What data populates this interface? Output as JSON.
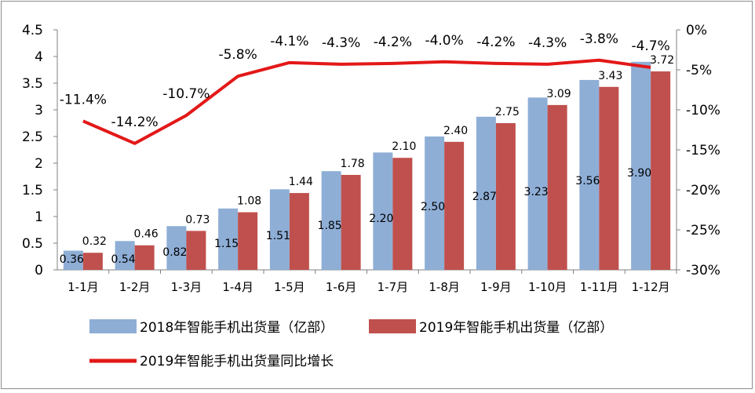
{
  "chart_data": {
    "type": "bar",
    "title": "",
    "categories": [
      "1-1月",
      "1-2月",
      "1-3月",
      "1-4月",
      "1-5月",
      "1-6月",
      "1-7月",
      "1-8月",
      "1-9月",
      "1-10月",
      "1-11月",
      "1-12月"
    ],
    "series": [
      {
        "name": "2018年智能手机出货量（亿部）",
        "type": "bar",
        "axis": "left",
        "color": "#8eaed6",
        "values": [
          0.36,
          0.54,
          0.82,
          1.15,
          1.51,
          1.85,
          2.2,
          2.5,
          2.87,
          3.23,
          3.56,
          3.9
        ],
        "labels": [
          "0.36",
          "0.54",
          "0.82",
          "1.15",
          "1.51",
          "1.85",
          "2.20",
          "2.50",
          "2.87",
          "3.23",
          "3.56",
          "3.90"
        ]
      },
      {
        "name": "2019年智能手机出货量（亿部）",
        "type": "bar",
        "axis": "left",
        "color": "#c0504d",
        "values": [
          0.32,
          0.46,
          0.73,
          1.08,
          1.44,
          1.78,
          2.1,
          2.4,
          2.75,
          3.09,
          3.43,
          3.72
        ],
        "labels": [
          "0.32",
          "0.46",
          "0.73",
          "1.08",
          "1.44",
          "1.78",
          "2.10",
          "2.40",
          "2.75",
          "3.09",
          "3.43",
          "3.72"
        ]
      },
      {
        "name": "2019年智能手机出货量同比增长",
        "type": "line",
        "axis": "right",
        "color": "#e31818",
        "values": [
          -11.4,
          -14.2,
          -10.7,
          -5.8,
          -4.1,
          -4.3,
          -4.2,
          -4.0,
          -4.2,
          -4.3,
          -3.8,
          -4.7
        ],
        "labels": [
          "-11.4%",
          "-14.2%",
          "-10.7%",
          "-5.8%",
          "-4.1%",
          "-4.3%",
          "-4.2%",
          "-4.0%",
          "-4.2%",
          "-4.3%",
          "-3.8%",
          "-4.7%"
        ]
      }
    ],
    "y_left": {
      "min": 0,
      "max": 4.5,
      "ticks": [
        "0",
        "0.5",
        "1",
        "1.5",
        "2",
        "2.5",
        "3",
        "3.5",
        "4",
        "4.5"
      ]
    },
    "y_right": {
      "min": -30,
      "max": 0,
      "ticks": [
        "-30%",
        "-25%",
        "-20%",
        "-15%",
        "-10%",
        "-5%",
        "0%"
      ]
    },
    "legend_position": "bottom",
    "grid": false
  }
}
